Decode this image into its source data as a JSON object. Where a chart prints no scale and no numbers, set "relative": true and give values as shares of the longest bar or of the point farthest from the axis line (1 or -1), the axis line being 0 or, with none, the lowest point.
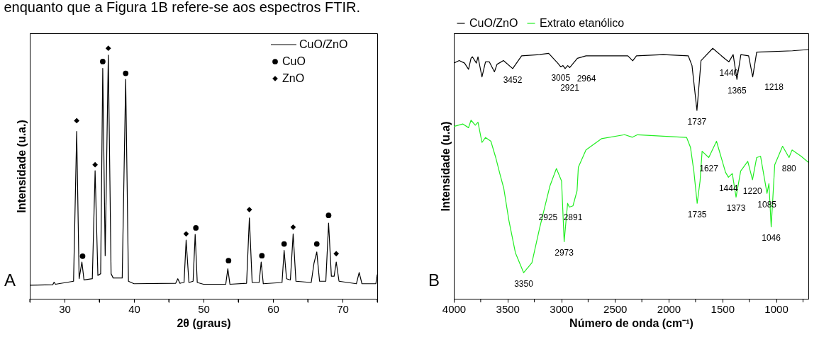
{
  "chart_data": [
    {
      "type": "line",
      "relative": true,
      "title": "enquanto que a Figura 1B refere-se aos espectros FTIR.",
      "xlabel": "2θ (graus)",
      "ylabel": "Intensidade (u.a.)",
      "xlim": [
        25,
        75
      ],
      "xticks": [
        {
          "value": 25,
          "label": null
        },
        30,
        {
          "value": 35,
          "label": null
        },
        40,
        {
          "value": 45,
          "label": null
        },
        50,
        {
          "value": 55,
          "label": null
        },
        60,
        {
          "value": 65,
          "label": null
        },
        70,
        {
          "value": 75,
          "label": null
        }
      ],
      "legend": "top right",
      "grid": false,
      "annotations": [
        "A"
      ],
      "series": [
        {
          "name": "CuO/ZnO",
          "color": "#000000",
          "x": [
            25,
            28.3,
            28.5,
            28.7,
            31.3,
            31.75,
            32.1,
            32.5,
            32.8,
            34.0,
            34.4,
            34.8,
            35.2,
            35.5,
            35.85,
            36.3,
            36.7,
            37.0,
            38.3,
            38.8,
            39.2,
            40,
            46,
            46.3,
            46.6,
            47.2,
            47.5,
            47.9,
            48.5,
            48.8,
            49.1,
            50,
            53.2,
            53.5,
            53.8,
            56.2,
            56.6,
            57.0,
            58.0,
            58.3,
            58.6,
            61.3,
            61.6,
            61.95,
            62.5,
            62.9,
            63.3,
            65.5,
            65.9,
            66.3,
            66.7,
            67.6,
            68.0,
            68.4,
            68.8,
            69.1,
            69.5,
            72.0,
            72.4,
            72.8,
            74.8,
            75
          ],
          "values": [
            0.054,
            0.056,
            0.066,
            0.058,
            0.07,
            0.668,
            0.08,
            0.147,
            0.075,
            0.08,
            0.511,
            0.093,
            0.1,
            0.92,
            0.172,
            0.973,
            0.1,
            0.083,
            0.083,
            0.876,
            0.07,
            0.06,
            0.062,
            0.08,
            0.062,
            0.065,
            0.234,
            0.065,
            0.07,
            0.257,
            0.065,
            0.058,
            0.058,
            0.12,
            0.058,
            0.062,
            0.323,
            0.065,
            0.065,
            0.147,
            0.06,
            0.065,
            0.193,
            0.08,
            0.075,
            0.259,
            0.07,
            0.065,
            0.142,
            0.187,
            0.07,
            0.07,
            0.302,
            0.09,
            0.09,
            0.147,
            0.07,
            0.06,
            0.105,
            0.06,
            0.06,
            0.097
          ]
        },
        {
          "name": "CuO",
          "type": "scatter",
          "marker": "circle",
          "color": "#000000",
          "x": [
            32.6,
            35.5,
            38.8,
            48.9,
            53.6,
            58.4,
            61.6,
            66.3,
            68.0
          ],
          "values": [
            0.17,
            0.947,
            0.9,
            0.283,
            0.152,
            0.172,
            0.219,
            0.219,
            0.333
          ]
        },
        {
          "name": "ZnO",
          "type": "scatter",
          "marker": "diamond",
          "color": "#000000",
          "x": [
            31.75,
            34.4,
            36.3,
            47.5,
            56.6,
            62.9,
            69.1
          ],
          "values": [
            0.711,
            0.535,
            1.0,
            0.259,
            0.356,
            0.286,
            0.18
          ]
        }
      ]
    },
    {
      "type": "line",
      "relative": true,
      "xlabel": "Número de onda (cm⁻¹)",
      "ylabel": "Intensidade (u.a)",
      "xlim": [
        4000,
        700
      ],
      "xticks": [
        4000,
        {
          "value": 3750,
          "label": null
        },
        3500,
        {
          "value": 3250,
          "label": null
        },
        3000,
        {
          "value": 2750,
          "label": null
        },
        2500,
        {
          "value": 2250,
          "label": null
        },
        2000,
        {
          "value": 1750,
          "label": null
        },
        1500,
        {
          "value": 1250,
          "label": null
        },
        1000,
        {
          "value": 750,
          "label": null
        }
      ],
      "legend": "top",
      "grid": false,
      "annotations": [
        "B",
        {
          "text": "3452",
          "x": 3452,
          "y": 0.919
        },
        {
          "text": "3005",
          "x": 3005,
          "y": 0.926
        },
        {
          "text": "2964",
          "x": 2964,
          "y": 0.919
        },
        {
          "text": "2921",
          "x": 2921,
          "y": 0.923
        },
        {
          "text": "1737",
          "x": 1737,
          "y": 0.752
        },
        {
          "text": "1440",
          "x": 1440,
          "y": 0.946
        },
        {
          "text": "1365",
          "x": 1365,
          "y": 0.876
        },
        {
          "text": "1218",
          "x": 1218,
          "y": 0.886
        },
        {
          "text": "1627",
          "x": 1627,
          "y": 0.564
        },
        {
          "text": "880",
          "x": 880,
          "y": 0.564
        },
        {
          "text": "2891",
          "x": 2891,
          "y": 0.371
        },
        {
          "text": "1444",
          "x": 1444,
          "y": 0.485
        },
        {
          "text": "1735",
          "x": 1735,
          "y": 0.381
        },
        {
          "text": "2925",
          "x": 2925,
          "y": 0.366
        },
        {
          "text": "1220",
          "x": 1220,
          "y": 0.475
        },
        {
          "text": "1373",
          "x": 1373,
          "y": 0.406
        },
        {
          "text": "1085",
          "x": 1085,
          "y": 0.421
        },
        {
          "text": "1046",
          "x": 1046,
          "y": 0.287
        },
        {
          "text": "2973",
          "x": 2973,
          "y": 0.228
        },
        {
          "text": "3350",
          "x": 3350,
          "y": 0.104
        }
      ],
      "series": [
        {
          "name": "CuO/ZnO",
          "color": "#000000",
          "x": [
            4000,
            3950,
            3900,
            3863,
            3840,
            3827,
            3790,
            3775,
            3738,
            3705,
            3670,
            3622,
            3598,
            3538,
            3452,
            3369,
            3201,
            3117,
            3033,
            3005,
            2984,
            2964,
            2940,
            2921,
            2850,
            2770,
            2380,
            2335,
            2300,
            2050,
            1818,
            1783,
            1737,
            1699,
            1590,
            1471,
            1440,
            1400,
            1365,
            1328,
            1256,
            1218,
            1181,
            848,
            700
          ],
          "values": [
            0.941,
            0.951,
            0.941,
            0.916,
            0.96,
            0.966,
            0.941,
            0.966,
            0.886,
            0.946,
            0.946,
            0.906,
            0.936,
            0.951,
            0.919,
            0.97,
            0.975,
            0.98,
            0.941,
            0.926,
            0.931,
            0.919,
            0.931,
            0.923,
            0.96,
            0.97,
            0.97,
            0.95,
            0.97,
            0.975,
            0.97,
            0.931,
            0.752,
            0.951,
            1.0,
            0.956,
            0.946,
            0.975,
            0.876,
            0.975,
            0.97,
            0.886,
            0.985,
            0.99,
            0.995
          ]
        },
        {
          "name": "Extrato etanólico",
          "color": "#22ee22",
          "x": [
            4000,
            3917,
            3863,
            3840,
            3800,
            3775,
            3738,
            3705,
            3655,
            3610,
            3572,
            3535,
            3487,
            3427,
            3350,
            3273,
            3201,
            3105,
            3045,
            2997,
            2973,
            2941,
            2925,
            2891,
            2853,
            2841,
            2770,
            2626,
            2410,
            2338,
            2290,
            2050,
            1833,
            1797,
            1766,
            1735,
            1708,
            1689,
            1627,
            1555,
            1471,
            1444,
            1408,
            1373,
            1330,
            1264,
            1220,
            1181,
            1145,
            1085,
            1067,
            1046,
            1013,
            940,
            880,
            852,
            767,
            700
          ],
          "values": [
            0.688,
            0.698,
            0.683,
            0.713,
            0.693,
            0.705,
            0.624,
            0.644,
            0.629,
            0.564,
            0.5,
            0.441,
            0.312,
            0.184,
            0.104,
            0.144,
            0.283,
            0.451,
            0.52,
            0.47,
            0.228,
            0.381,
            0.366,
            0.371,
            0.431,
            0.525,
            0.594,
            0.639,
            0.655,
            0.645,
            0.655,
            0.649,
            0.644,
            0.604,
            0.51,
            0.381,
            0.47,
            0.589,
            0.564,
            0.629,
            0.505,
            0.485,
            0.5,
            0.406,
            0.51,
            0.549,
            0.475,
            0.564,
            0.569,
            0.421,
            0.46,
            0.287,
            0.535,
            0.609,
            0.564,
            0.594,
            0.569,
            0.545
          ]
        }
      ]
    }
  ]
}
